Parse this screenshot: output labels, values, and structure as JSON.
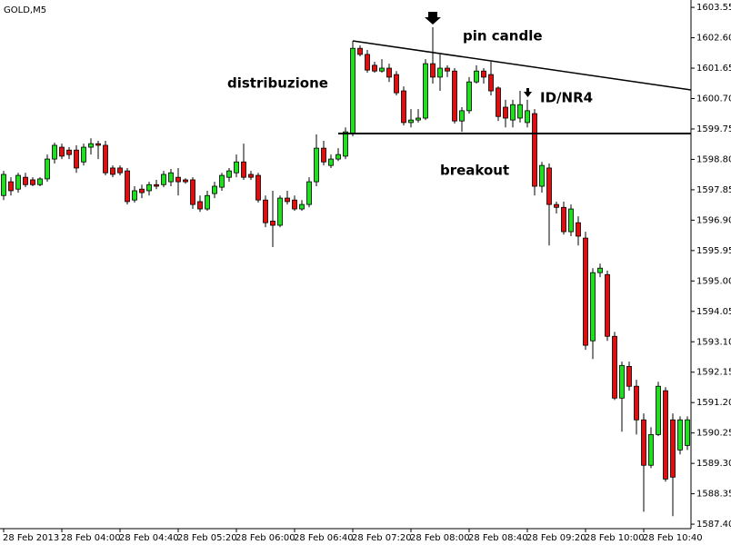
{
  "chart_data": {
    "type": "candlestick",
    "title": "GOLD,M5",
    "categories": [
      "28 Feb 2013",
      null,
      null,
      null,
      null,
      null,
      null,
      null,
      "28 Feb 04:00",
      null,
      null,
      null,
      null,
      null,
      null,
      null,
      "28 Feb 04:40",
      null,
      null,
      null,
      null,
      null,
      null,
      null,
      "28 Feb 05:20",
      null,
      null,
      null,
      null,
      null,
      null,
      null,
      "28 Feb 06:00",
      null,
      null,
      null,
      null,
      null,
      null,
      null,
      "28 Feb 06:40",
      null,
      null,
      null,
      null,
      null,
      null,
      null,
      "28 Feb 07:20",
      null,
      null,
      null,
      null,
      null,
      null,
      null,
      "28 Feb 08:00",
      null,
      null,
      null,
      null,
      null,
      null,
      null,
      "28 Feb 08:40",
      null,
      null,
      null,
      null,
      null,
      null,
      null,
      "28 Feb 09:20",
      null,
      null,
      null,
      null,
      null,
      null,
      null,
      "28 Feb 10:00",
      null,
      null,
      null,
      null,
      null,
      null,
      null,
      "28 Feb 10:40",
      null,
      null,
      null,
      null,
      null,
      null
    ],
    "open": [
      1597.67,
      1598.1,
      1597.87,
      1598.24,
      1598.16,
      1598.01,
      1598.19,
      1598.81,
      1599.18,
      1599.09,
      1599.09,
      1598.72,
      1599.18,
      1599.29,
      1599.24,
      1598.53,
      1598.53,
      1598.44,
      1597.53,
      1597.87,
      1597.82,
      1598.01,
      1598.01,
      1598.1,
      1598.24,
      1598.16,
      1598.16,
      1597.48,
      1597.25,
      1597.73,
      1597.93,
      1598.24,
      1598.38,
      1598.72,
      1598.33,
      1598.3,
      1597.53,
      1596.87,
      1596.74,
      1597.59,
      1597.53,
      1597.25,
      1597.39,
      1598.1,
      1599.15,
      1598.61,
      1598.81,
      1598.9,
      1599.61,
      1602.27,
      1602.08,
      1601.74,
      1601.56,
      1601.65,
      1601.45,
      1600.94,
      1599.95,
      1600.03,
      1600.09,
      1601.79,
      1601.37,
      1601.65,
      1601.56,
      1600.0,
      1600.32,
      1601.22,
      1601.56,
      1601.45,
      1601.03,
      1600.43,
      1600.03,
      1600.09,
      1599.95,
      1600.23,
      1597.96,
      1598.53,
      1597.39,
      1597.3,
      1596.54,
      1596.82,
      1596.34,
      1593.13,
      1595.26,
      1595.2,
      1593.27,
      1591.34,
      1592.33,
      1591.71,
      1590.66,
      1589.24,
      1590.2,
      1591.57,
      1590.66,
      1589.72,
      1589.86
    ],
    "high": [
      1598.44,
      1598.24,
      1598.38,
      1598.38,
      1598.24,
      1598.24,
      1598.95,
      1599.32,
      1599.29,
      1599.18,
      1599.24,
      1599.29,
      1599.46,
      1599.38,
      1599.38,
      1598.61,
      1598.61,
      1598.53,
      1597.96,
      1598.01,
      1598.1,
      1598.16,
      1598.44,
      1598.5,
      1598.53,
      1598.21,
      1598.24,
      1597.67,
      1597.82,
      1598.1,
      1598.38,
      1598.53,
      1598.95,
      1599.29,
      1598.44,
      1598.38,
      1597.67,
      1597.82,
      1597.67,
      1597.82,
      1597.67,
      1597.53,
      1598.24,
      1599.58,
      1599.38,
      1598.95,
      1599.15,
      1599.8,
      1602.5,
      1602.36,
      1602.22,
      1601.85,
      1601.93,
      1601.79,
      1601.56,
      1601.08,
      1600.37,
      1600.37,
      1601.93,
      1602.93,
      1602.08,
      1601.74,
      1601.65,
      1600.43,
      1601.37,
      1601.74,
      1601.65,
      1601.85,
      1601.08,
      1600.66,
      1600.66,
      1600.94,
      1600.66,
      1600.37,
      1598.72,
      1598.67,
      1597.48,
      1597.48,
      1597.39,
      1597.02,
      1596.54,
      1595.4,
      1595.54,
      1595.32,
      1593.41,
      1592.48,
      1592.48,
      1591.91,
      1590.86,
      1590.43,
      1591.85,
      1591.68,
      1590.86,
      1590.77,
      1590.77
    ],
    "low": [
      1597.53,
      1597.67,
      1597.76,
      1597.93,
      1597.96,
      1597.96,
      1598.1,
      1598.67,
      1598.81,
      1598.81,
      1598.38,
      1598.61,
      1598.95,
      1598.81,
      1598.3,
      1598.24,
      1598.3,
      1597.39,
      1597.45,
      1597.59,
      1597.67,
      1597.87,
      1597.93,
      1597.96,
      1597.67,
      1598.04,
      1597.25,
      1597.16,
      1597.19,
      1597.59,
      1597.82,
      1598.1,
      1598.24,
      1598.16,
      1598.16,
      1597.45,
      1596.68,
      1596.06,
      1596.68,
      1597.39,
      1597.19,
      1597.19,
      1597.3,
      1597.96,
      1598.61,
      1598.53,
      1598.75,
      1598.81,
      1599.52,
      1602.02,
      1601.51,
      1601.51,
      1601.51,
      1601.22,
      1600.8,
      1599.86,
      1599.8,
      1599.95,
      1600.03,
      1601.17,
      1600.94,
      1601.37,
      1599.92,
      1599.66,
      1600.23,
      1601.17,
      1601.17,
      1600.8,
      1600.0,
      1599.8,
      1599.8,
      1599.95,
      1599.8,
      1597.67,
      1597.76,
      1596.11,
      1597.11,
      1596.45,
      1596.4,
      1596.11,
      1592.85,
      1592.56,
      1595.12,
      1593.13,
      1591.28,
      1590.29,
      1591.57,
      1590.2,
      1587.79,
      1589.15,
      1590.15,
      1588.73,
      1587.65,
      1589.58,
      1589.72
    ],
    "close": [
      1598.33,
      1597.82,
      1598.3,
      1598.01,
      1598.01,
      1598.19,
      1598.81,
      1599.24,
      1598.9,
      1598.95,
      1598.53,
      1599.18,
      1599.29,
      1599.24,
      1598.38,
      1598.33,
      1598.38,
      1597.48,
      1597.82,
      1597.76,
      1598.01,
      1597.96,
      1598.33,
      1598.38,
      1598.1,
      1598.1,
      1597.39,
      1597.25,
      1597.67,
      1597.96,
      1598.3,
      1598.44,
      1598.72,
      1598.24,
      1598.24,
      1597.53,
      1596.82,
      1596.74,
      1597.59,
      1597.48,
      1597.25,
      1597.39,
      1598.1,
      1599.15,
      1598.72,
      1598.81,
      1598.95,
      1599.66,
      1602.27,
      1602.08,
      1601.59,
      1601.56,
      1601.65,
      1601.37,
      1600.88,
      1599.95,
      1600.03,
      1600.09,
      1601.79,
      1601.37,
      1601.65,
      1601.56,
      1600.0,
      1600.32,
      1601.22,
      1601.56,
      1601.37,
      1600.94,
      1600.14,
      1600.09,
      1600.51,
      1600.51,
      1600.32,
      1597.96,
      1598.61,
      1597.39,
      1597.3,
      1596.54,
      1597.25,
      1596.4,
      1592.99,
      1595.26,
      1595.4,
      1593.27,
      1591.34,
      1592.36,
      1591.71,
      1590.66,
      1589.24,
      1590.2,
      1591.71,
      1588.81,
      1588.87,
      1590.66,
      1590.66
    ],
    "up_color": "#22dd22",
    "down_color": "#dd1111",
    "ylim": [
      1587.26,
      1603.78
    ],
    "yticks": [
      1603.55,
      {
        "value": 1602.6,
        "label": "1602.60"
      },
      1601.65,
      {
        "value": 1600.7,
        "label": "1600.70"
      },
      1599.75,
      {
        "value": 1598.8,
        "label": "1598.80"
      },
      1597.85,
      {
        "value": 1596.9,
        "label": "1596.90"
      },
      1595.95,
      {
        "value": 1595,
        "label": "1595.00"
      },
      1594.05,
      {
        "value": 1593.1,
        "label": "1593.10"
      },
      1592.15,
      {
        "value": 1591.2,
        "label": "1591.20"
      },
      1590.25,
      {
        "value": 1589.3,
        "label": "1589.30"
      },
      1588.35,
      {
        "value": 1587.4,
        "label": "1587.40"
      }
    ],
    "grid": false,
    "annotations": [
      "distribuzione",
      "pin candle",
      "ID/NR4",
      "breakout"
    ]
  }
}
